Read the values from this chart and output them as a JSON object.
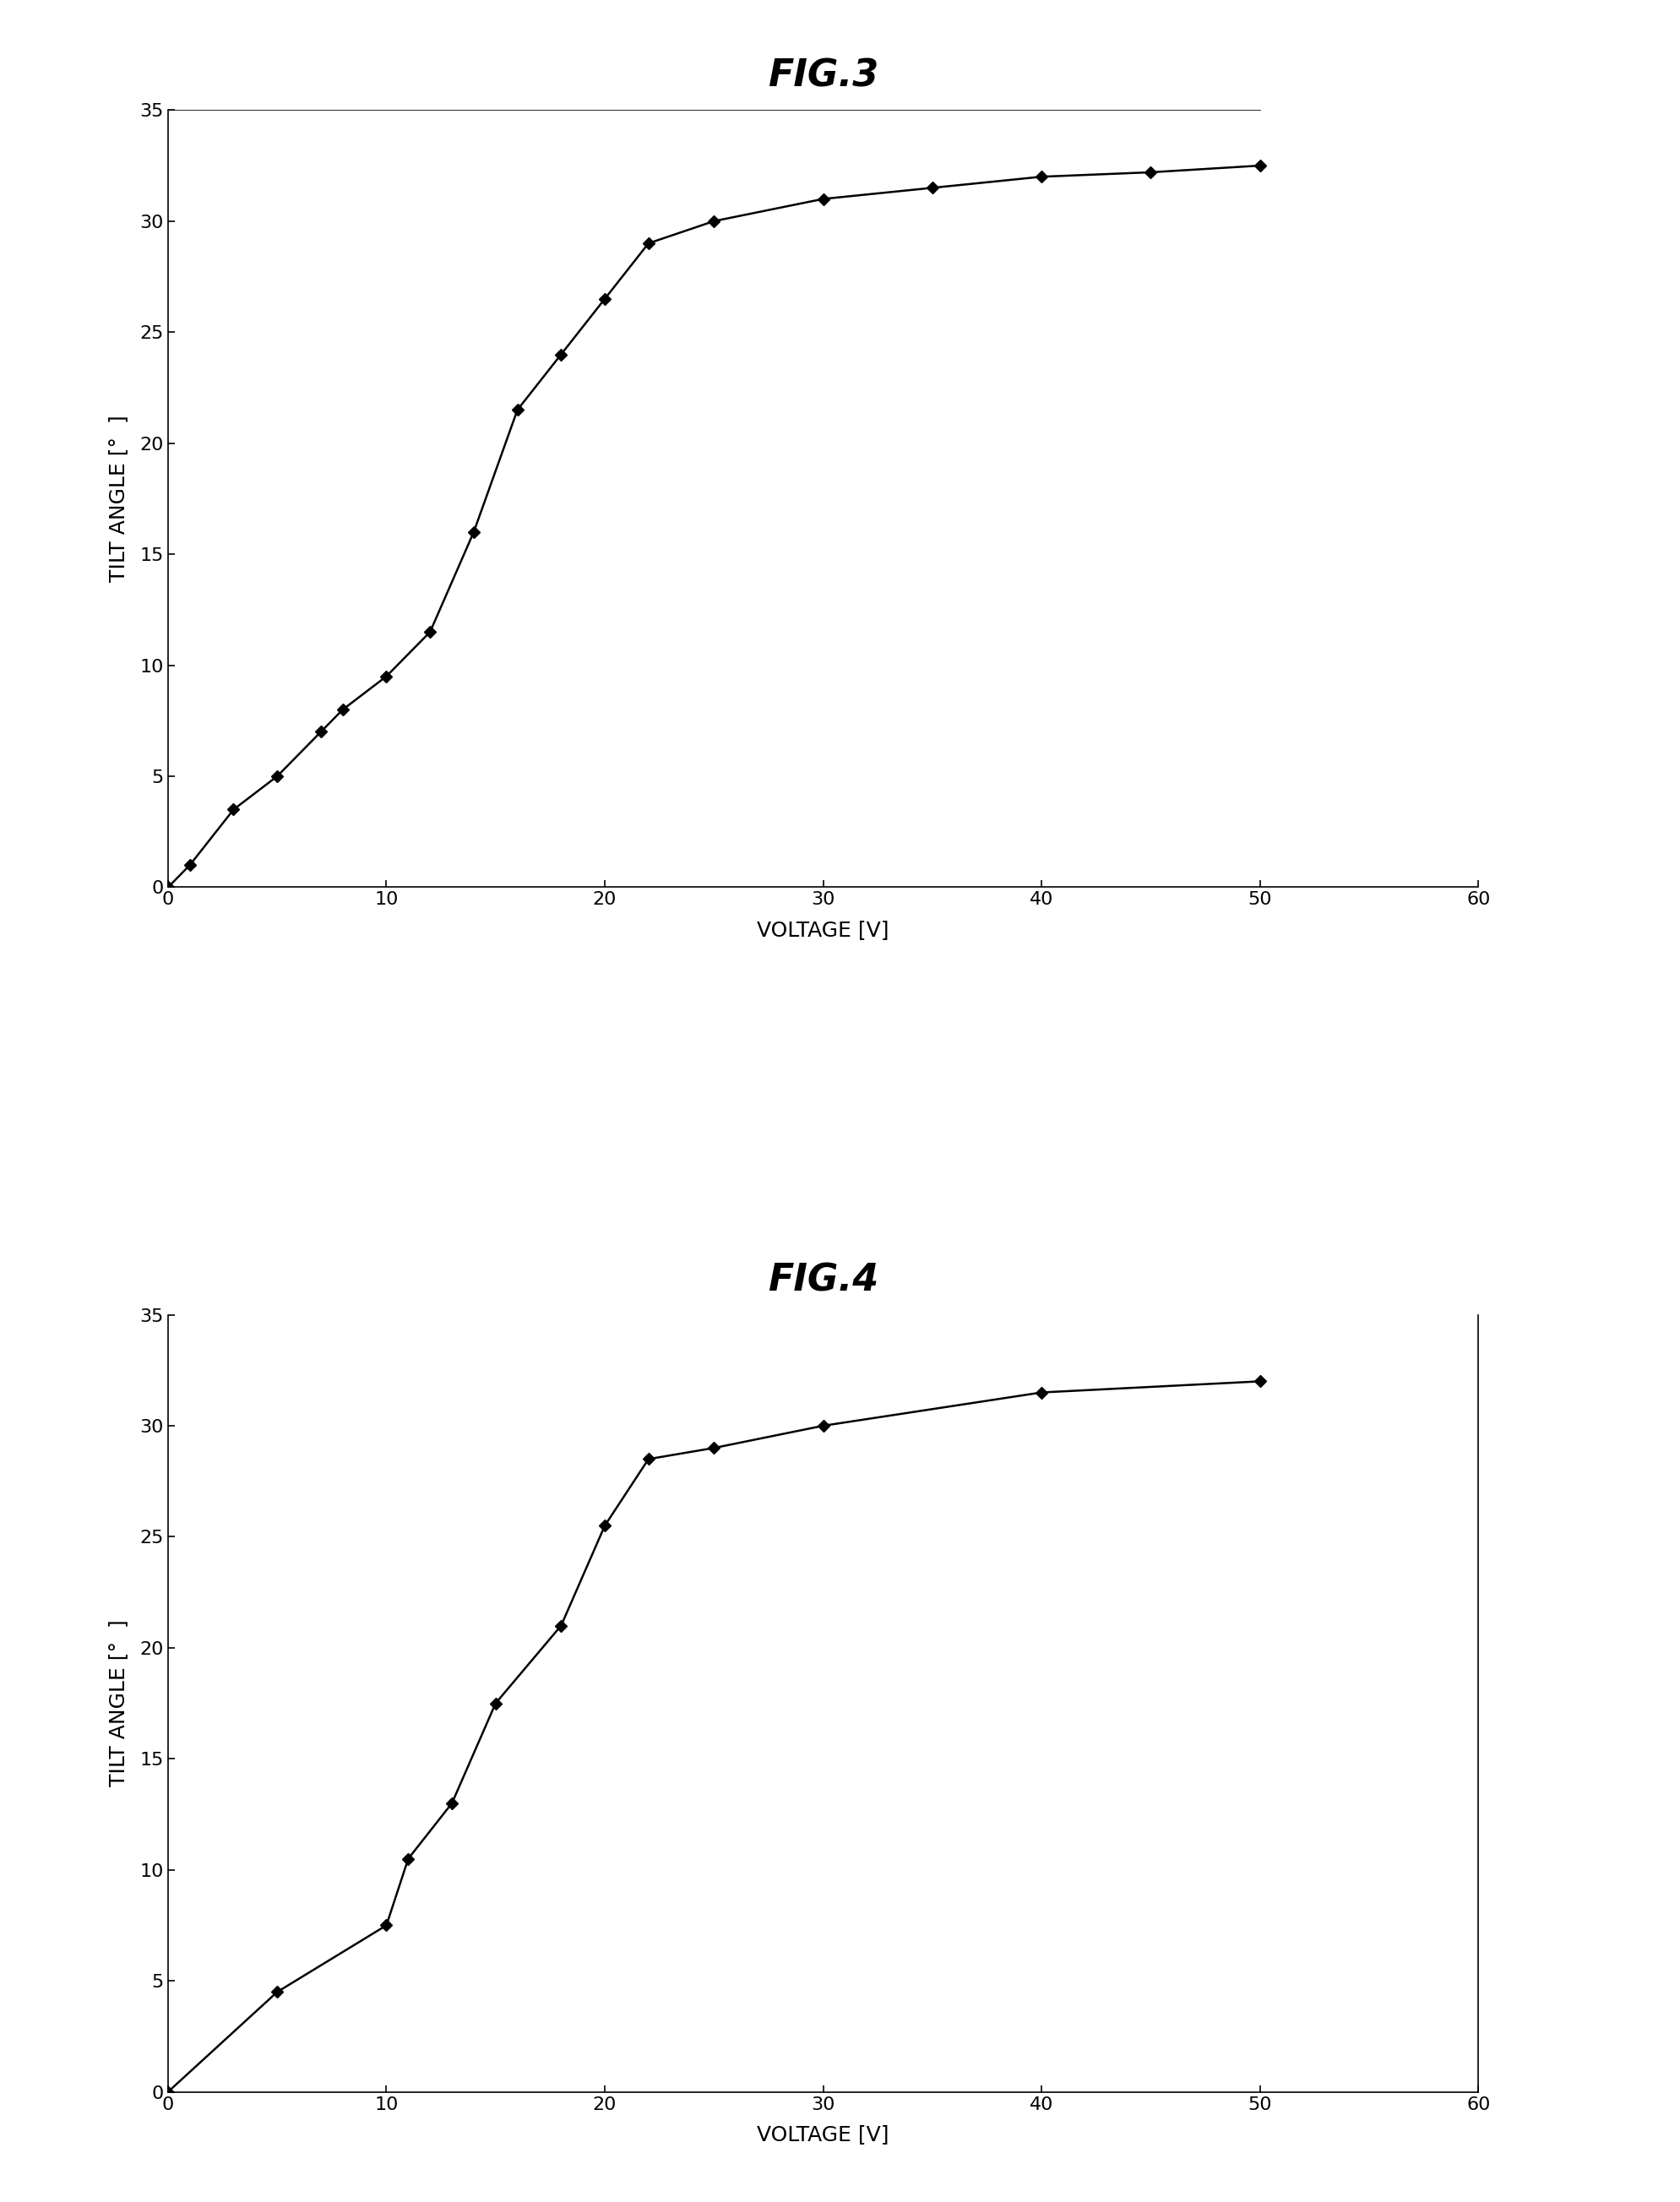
{
  "fig3": {
    "title": "FIG.3",
    "x": [
      0,
      1,
      3,
      5,
      7,
      8,
      10,
      12,
      14,
      16,
      18,
      20,
      22,
      25,
      30,
      35,
      40,
      45,
      50
    ],
    "y": [
      0,
      1.0,
      3.5,
      5.0,
      7.0,
      8.0,
      9.5,
      11.5,
      16.0,
      21.5,
      24.0,
      26.5,
      29.0,
      30.0,
      31.0,
      31.5,
      32.0,
      32.2,
      32.5
    ],
    "xlim": [
      0,
      60
    ],
    "ylim": [
      0,
      35
    ],
    "xticks": [
      0,
      10,
      20,
      30,
      40,
      50,
      60
    ],
    "yticks": [
      0,
      5,
      10,
      15,
      20,
      25,
      30,
      35
    ],
    "xlabel": "VOLTAGE [V]",
    "ylabel": "TILT ANGLE [°  ]",
    "has_top_line": true,
    "has_right_spine": false
  },
  "fig4": {
    "title": "FIG.4",
    "x": [
      0,
      5,
      10,
      11,
      13,
      15,
      18,
      20,
      22,
      25,
      30,
      40,
      50
    ],
    "y": [
      0,
      4.5,
      7.5,
      10.5,
      13.0,
      17.5,
      21.0,
      25.5,
      28.5,
      29.0,
      30.0,
      31.5,
      32.0
    ],
    "xlim": [
      0,
      60
    ],
    "ylim": [
      0,
      35
    ],
    "xticks": [
      0,
      10,
      20,
      30,
      40,
      50,
      60
    ],
    "yticks": [
      0,
      5,
      10,
      15,
      20,
      25,
      30,
      35
    ],
    "xlabel": "VOLTAGE [V]",
    "ylabel": "TILT ANGLE [°  ]",
    "has_top_line": false,
    "has_right_spine": true
  },
  "line_color": "#000000",
  "marker": "D",
  "marker_size": 7,
  "line_width": 1.8,
  "bg_color": "#ffffff",
  "title_fontsize": 32,
  "label_fontsize": 18,
  "tick_fontsize": 16,
  "title_style": "italic",
  "title_weight": "bold"
}
